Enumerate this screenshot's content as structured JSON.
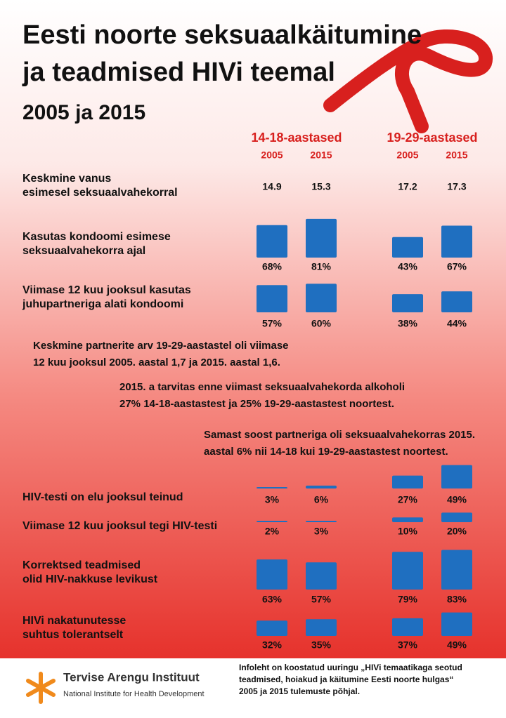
{
  "title": [
    "Eesti noorte seksuaalkäitumine",
    "ja teadmised HIVi teemal",
    "2005 ja 2015"
  ],
  "groups": [
    {
      "name": "14-18-aastased",
      "years": [
        "2005",
        "2015"
      ]
    },
    {
      "name": "19-29-aastased",
      "years": [
        "2005",
        "2015"
      ]
    }
  ],
  "rows": [
    {
      "label": [
        "Keskmine vanus",
        "esimesel seksuaalvahekorral"
      ],
      "values": [
        14.9,
        15.3,
        17.2,
        17.3
      ]
    },
    {
      "label": [
        "Kasutas kondoomi esimese",
        "seksuaalvahekorra ajal"
      ],
      "values": [
        68,
        81,
        43,
        67
      ],
      "value_labels": [
        "68%",
        "81%",
        "43%",
        "67%"
      ]
    },
    {
      "label": [
        "Viimase 12 kuu jooksul kasutas",
        "juhupartneriga alati kondoomi"
      ],
      "values": [
        57,
        60,
        38,
        44
      ],
      "value_labels": [
        "57%",
        "60%",
        "38%",
        "44%"
      ]
    },
    {
      "label": [
        "HIV-testi on elu jooksul teinud"
      ],
      "values": [
        3,
        6,
        27,
        49
      ],
      "value_labels": [
        "3%",
        "6%",
        "27%",
        "49%"
      ]
    },
    {
      "label": [
        "Viimase 12 kuu jooksul tegi HIV-testi"
      ],
      "values": [
        2,
        3,
        10,
        20
      ],
      "value_labels": [
        "2%",
        "3%",
        "10%",
        "20%"
      ]
    },
    {
      "label": [
        "Korrektsed teadmised",
        "olid HIV-nakkuse levikust"
      ],
      "values": [
        63,
        57,
        79,
        83
      ],
      "value_labels": [
        "63%",
        "57%",
        "79%",
        "83%"
      ]
    },
    {
      "label": [
        "HIVi nakatunutesse",
        "suhtus tolerantselt"
      ],
      "values": [
        32,
        35,
        37,
        49
      ],
      "value_labels": [
        "32%",
        "35%",
        "37%",
        "49%"
      ]
    }
  ],
  "notes": [
    [
      "Keskmine partnerite arv 19-29-aastastel oli viimase",
      "12 kuu jooksul 2005. aastal 1,7 ja 2015. aastal 1,6."
    ],
    [
      "2015. a tarvitas enne viimast seksuaalvahekorda alkoholi",
      "27% 14-18-aastastest  ja 25% 19-29-aastastest noortest."
    ],
    [
      "Samast soost partneriga oli seksuaalvahekorras 2015.",
      "aastal 6% nii 14-18  kui 19-29-aastastest noortest."
    ]
  ],
  "footer": {
    "org": "Tervise Arengu Instituut",
    "org_en": "National Institute for Health Development",
    "source": [
      "Infoleht on koostatud uuringu „HIVi temaatikaga seotud",
      "teadmised, hoiakud ja käitumine Eesti noorte hulgas“",
      "2005 ja 2015 tulemuste põhjal."
    ]
  }
}
